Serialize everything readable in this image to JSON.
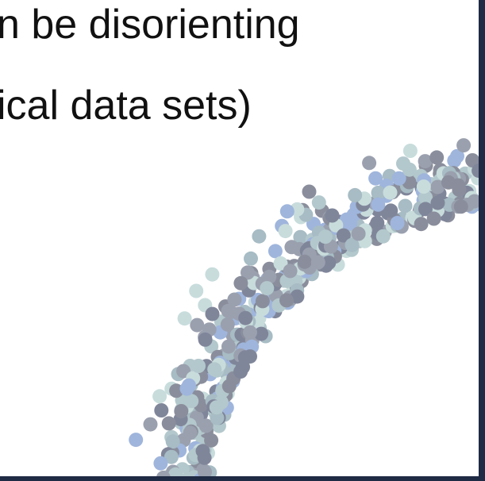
{
  "slide": {
    "lines": [
      "n be disorienting",
      "ical data sets)"
    ]
  }
}
